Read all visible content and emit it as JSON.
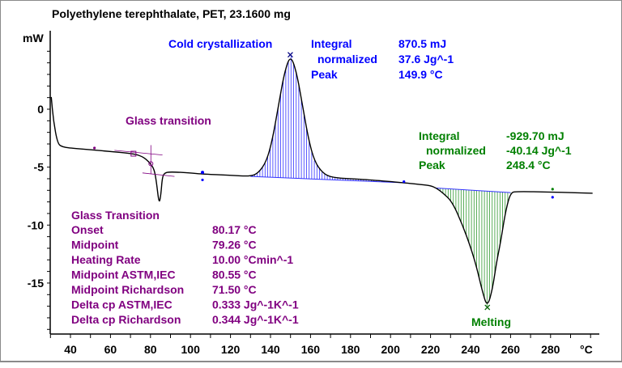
{
  "chart_data": {
    "type": "line",
    "title": "Polyethylene terephthalate, PET, 23.1600 mg",
    "xlabel": "°C",
    "ylabel": "mW",
    "xlim": [
      30,
      301
    ],
    "ylim": [
      -19.7,
      6.2
    ],
    "x_ticks": [
      40,
      60,
      80,
      100,
      120,
      140,
      160,
      180,
      200,
      220,
      240,
      260,
      280
    ],
    "y_ticks": [
      0,
      -5,
      -10,
      -15
    ],
    "grid": false,
    "colors": {
      "curve": "#000000",
      "glass": "#800080",
      "cold": "#0000ff",
      "melting": "#008000"
    },
    "series": [
      {
        "x": [
          30.4,
          31.5,
          33.6,
          36,
          39.6,
          50,
          60,
          71.8,
          76,
          78,
          80,
          81.9,
          83,
          84.3,
          85.2,
          85.9,
          87,
          89.9,
          100,
          106,
          120,
          130,
          134,
          138,
          141,
          144,
          147,
          150,
          153,
          156,
          159,
          162,
          166,
          170.5,
          180,
          190,
          206.7,
          215,
          220,
          222.8,
          226,
          230.9,
          236,
          240,
          243,
          246,
          248.4,
          251,
          253,
          255,
          257.5,
          260,
          263,
          280,
          301
        ],
        "y": [
          1.05,
          -1.0,
          -3.0,
          -3.25,
          -3.35,
          -3.5,
          -3.65,
          -3.84,
          -4.1,
          -4.35,
          -4.7,
          -5.2,
          -6.3,
          -8.2,
          -7.4,
          -5.9,
          -5.5,
          -5.4,
          -5.5,
          -5.6,
          -5.7,
          -5.8,
          -5.5,
          -4.5,
          -2.6,
          0.35,
          3.2,
          4.7,
          3.2,
          0.35,
          -2.6,
          -4.5,
          -5.5,
          -5.9,
          -6.0,
          -6.1,
          -6.35,
          -6.5,
          -6.6,
          -6.8,
          -7.2,
          -8.0,
          -10.0,
          -11.9,
          -13.6,
          -15.8,
          -17.1,
          -15.5,
          -13.2,
          -11.5,
          -8.8,
          -7.2,
          -7.1,
          -7.15,
          -7.25
        ]
      }
    ],
    "peaks": [
      {
        "name": "Cold crystallization",
        "range": [
          130,
          206.7
        ],
        "peak_x": 149.9,
        "peak_y": 4.7,
        "labels": [
          "Integral",
          "normalized",
          "Peak"
        ],
        "values": [
          "870.5 mJ",
          "37.6 Jg^-1",
          "149.9 °C"
        ]
      },
      {
        "name": "Melting",
        "range": [
          222.8,
          260
        ],
        "peak_x": 248.4,
        "peak_y": -17.1,
        "labels": [
          "Integral",
          "normalized",
          "Peak"
        ],
        "values": [
          "-929.70 mJ",
          "-40.14 Jg^-1",
          "248.4 °C"
        ]
      }
    ],
    "glass": {
      "label": "Glass transition",
      "table_title": "Glass Transition",
      "rows": [
        {
          "k": "Onset",
          "v": "80.17 °C"
        },
        {
          "k": "Midpoint",
          "v": "79.26 °C"
        },
        {
          "k": "Heating Rate",
          "v": "10.00 °Cmin^-1"
        },
        {
          "k": "Midpoint ASTM,IEC",
          "v": "80.55 °C"
        },
        {
          "k": "Midpoint Richardson",
          "v": "71.50 °C"
        },
        {
          "k": "Delta cp ASTM,IEC",
          "v": "0.333 Jg^-1K^-1"
        },
        {
          "k": "Delta cp Richardson",
          "v": "0.344 Jg^-1K^-1"
        }
      ]
    }
  }
}
